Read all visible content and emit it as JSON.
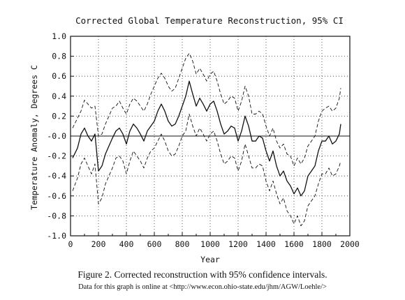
{
  "figure": {
    "caption": "Figure 2. Corrected reconstruction with 95% confidence intervals.",
    "note": "Data for this graph is online at <http://www.econ.ohio-state.edu/jhm/AGW/Loehle/>"
  },
  "chart_data": {
    "type": "line",
    "title": "Corrected Global Temperature Reconstruction, 95% CI",
    "xlabel": "Year",
    "ylabel": "Temperature Anomaly, Degrees C",
    "xlim": [
      0,
      2000
    ],
    "ylim": [
      -1.0,
      1.0
    ],
    "x_ticks": [
      0,
      200,
      400,
      600,
      800,
      1000,
      1200,
      1400,
      1600,
      1800,
      2000
    ],
    "x_tick_labels": [
      "0",
      "200",
      "400",
      "600",
      "800",
      "1000",
      "1200",
      "1400",
      "1600",
      "1800",
      "2000"
    ],
    "y_ticks": [
      1.0,
      0.8,
      0.6,
      0.4,
      0.2,
      0.0,
      -0.2,
      -0.4,
      -0.6,
      -0.8,
      -1.0
    ],
    "y_tick_labels": [
      "1.0",
      "0.8",
      "0.6",
      "0.4",
      "0.2",
      "-0.0",
      "-0.2",
      "-0.4",
      "-0.6",
      "-0.8",
      "-1.0"
    ],
    "grid": "dotted",
    "zero_line": true,
    "x": [
      15,
      50,
      75,
      100,
      125,
      150,
      175,
      200,
      225,
      250,
      275,
      300,
      325,
      350,
      375,
      400,
      425,
      450,
      475,
      500,
      525,
      550,
      575,
      600,
      625,
      650,
      675,
      700,
      725,
      750,
      775,
      800,
      825,
      850,
      875,
      900,
      925,
      950,
      975,
      1000,
      1025,
      1050,
      1075,
      1100,
      1125,
      1150,
      1175,
      1200,
      1225,
      1250,
      1275,
      1300,
      1325,
      1350,
      1375,
      1400,
      1425,
      1450,
      1475,
      1500,
      1525,
      1550,
      1575,
      1600,
      1625,
      1650,
      1675,
      1700,
      1725,
      1750,
      1775,
      1800,
      1825,
      1850,
      1875,
      1900,
      1925,
      1935
    ],
    "series": [
      {
        "style": "solid",
        "values": [
          -0.22,
          -0.12,
          0.02,
          0.08,
          0.0,
          -0.05,
          0.02,
          -0.35,
          -0.3,
          -0.18,
          -0.1,
          -0.02,
          0.05,
          0.08,
          0.02,
          -0.08,
          0.05,
          0.12,
          0.08,
          0.02,
          -0.05,
          0.05,
          0.1,
          0.15,
          0.25,
          0.32,
          0.25,
          0.15,
          0.1,
          0.12,
          0.2,
          0.3,
          0.4,
          0.55,
          0.42,
          0.3,
          0.38,
          0.32,
          0.25,
          0.32,
          0.35,
          0.25,
          0.12,
          0.02,
          0.05,
          0.1,
          0.08,
          -0.05,
          0.05,
          0.2,
          0.1,
          -0.05,
          -0.05,
          0.0,
          -0.02,
          -0.15,
          -0.25,
          -0.15,
          -0.3,
          -0.4,
          -0.35,
          -0.45,
          -0.5,
          -0.58,
          -0.52,
          -0.6,
          -0.55,
          -0.4,
          -0.35,
          -0.3,
          -0.15,
          -0.05,
          -0.05,
          0.0,
          -0.08,
          -0.05,
          0.02,
          0.12
        ]
      },
      {
        "style": "dashed",
        "values": [
          0.08,
          0.18,
          0.25,
          0.36,
          0.32,
          0.28,
          0.3,
          0.0,
          0.02,
          0.12,
          0.2,
          0.28,
          0.3,
          0.35,
          0.28,
          0.22,
          0.32,
          0.38,
          0.35,
          0.3,
          0.25,
          0.32,
          0.42,
          0.5,
          0.58,
          0.63,
          0.58,
          0.5,
          0.45,
          0.48,
          0.58,
          0.68,
          0.78,
          0.83,
          0.75,
          0.62,
          0.68,
          0.62,
          0.55,
          0.62,
          0.65,
          0.55,
          0.42,
          0.32,
          0.35,
          0.4,
          0.38,
          0.25,
          0.35,
          0.5,
          0.4,
          0.22,
          0.22,
          0.25,
          0.22,
          0.1,
          0.0,
          0.08,
          -0.05,
          -0.12,
          -0.08,
          -0.18,
          -0.2,
          -0.3,
          -0.22,
          -0.28,
          -0.22,
          -0.1,
          -0.05,
          0.0,
          0.15,
          0.25,
          0.28,
          0.3,
          0.25,
          0.28,
          0.38,
          0.48
        ]
      },
      {
        "style": "dashed",
        "values": [
          -0.55,
          -0.42,
          -0.28,
          -0.22,
          -0.3,
          -0.38,
          -0.28,
          -0.68,
          -0.62,
          -0.48,
          -0.4,
          -0.32,
          -0.22,
          -0.2,
          -0.25,
          -0.38,
          -0.25,
          -0.15,
          -0.2,
          -0.25,
          -0.32,
          -0.22,
          -0.15,
          -0.12,
          -0.05,
          0.02,
          -0.05,
          -0.15,
          -0.2,
          -0.18,
          -0.1,
          0.0,
          0.05,
          0.22,
          0.1,
          0.0,
          0.08,
          0.02,
          -0.05,
          0.02,
          0.05,
          -0.05,
          -0.18,
          -0.28,
          -0.25,
          -0.2,
          -0.22,
          -0.35,
          -0.25,
          -0.08,
          -0.2,
          -0.32,
          -0.32,
          -0.28,
          -0.3,
          -0.45,
          -0.55,
          -0.45,
          -0.58,
          -0.68,
          -0.62,
          -0.75,
          -0.8,
          -0.88,
          -0.8,
          -0.9,
          -0.85,
          -0.7,
          -0.65,
          -0.6,
          -0.48,
          -0.38,
          -0.38,
          -0.32,
          -0.4,
          -0.38,
          -0.3,
          -0.25
        ]
      }
    ]
  }
}
